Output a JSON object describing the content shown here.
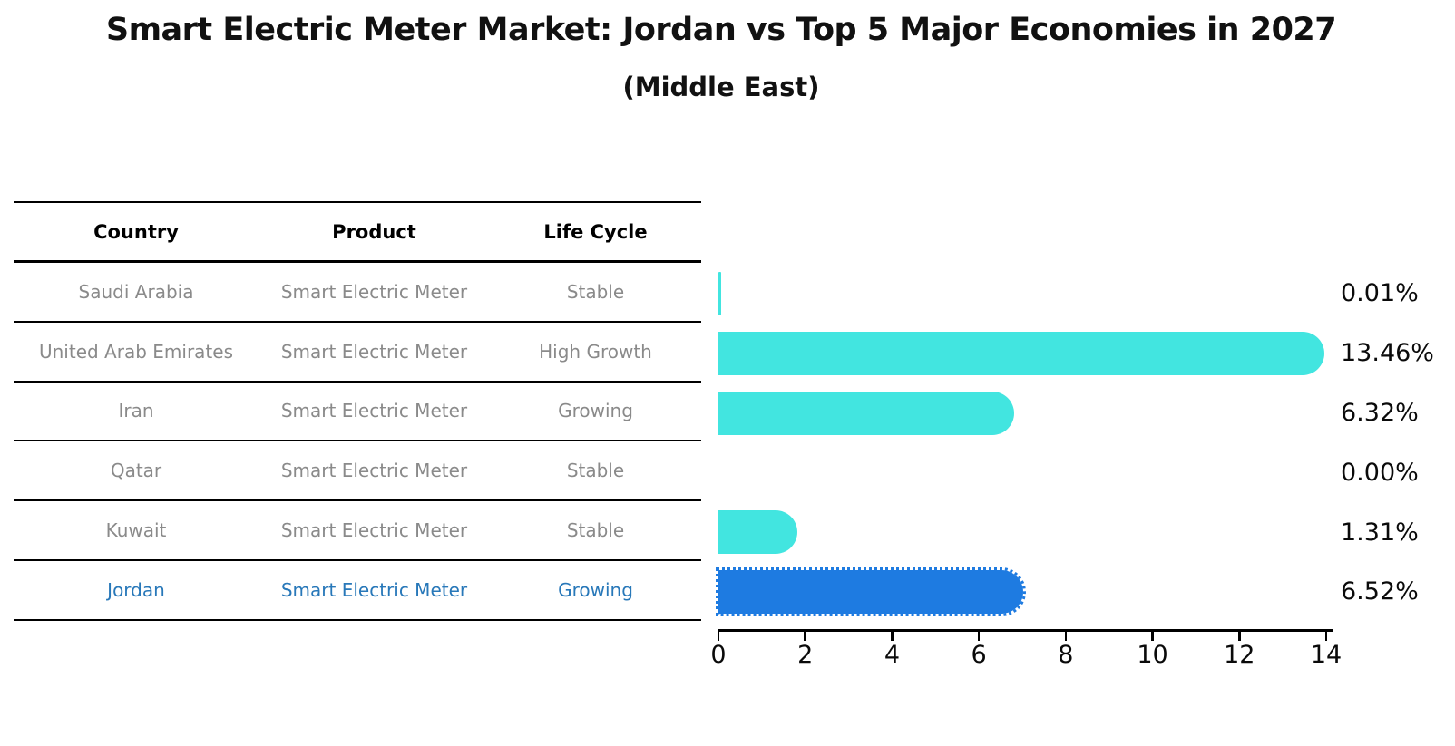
{
  "chart_data": {
    "type": "bar",
    "orientation": "horizontal",
    "title": "Smart Electric Meter Market: Jordan vs Top 5 Major Economies in 2027",
    "subtitle": "(Middle East)",
    "categories": [
      "Saudi Arabia",
      "United Arab Emirates",
      "Iran",
      "Qatar",
      "Kuwait",
      "Jordan"
    ],
    "values": [
      0.01,
      13.46,
      6.32,
      0.0,
      1.31,
      6.52
    ],
    "value_labels": [
      "0.01%",
      "13.46%",
      "6.32%",
      "0.00%",
      "1.31%",
      "6.52%"
    ],
    "xlim": [
      0,
      14
    ],
    "xticks": [
      0,
      2,
      4,
      6,
      8,
      10,
      12,
      14
    ],
    "grid": "off",
    "legend": "none",
    "highlight_index": 5,
    "highlight_category": "Jordan"
  },
  "table": {
    "headers": [
      "Country",
      "Product",
      "Life Cycle"
    ],
    "rows": [
      [
        "Saudi Arabia",
        "Smart Electric Meter",
        "Stable"
      ],
      [
        "United Arab Emirates",
        "Smart Electric Meter",
        "High Growth"
      ],
      [
        "Iran",
        "Smart Electric Meter",
        "Growing"
      ],
      [
        "Qatar",
        "Smart Electric Meter",
        "Stable"
      ],
      [
        "Kuwait",
        "Smart Electric Meter",
        "Stable"
      ],
      [
        "Jordan",
        "Smart Electric Meter",
        "Growing"
      ]
    ]
  },
  "colors": {
    "bar": "#42E5E0",
    "highlight_bar": "#1E7BE1",
    "highlight_text": "#2878B9",
    "table_text": "#8A8A8A",
    "header_text": "#000000",
    "axis": "#000000",
    "value_label_text": "#0A0A0A",
    "background": "#FFFFFF"
  }
}
